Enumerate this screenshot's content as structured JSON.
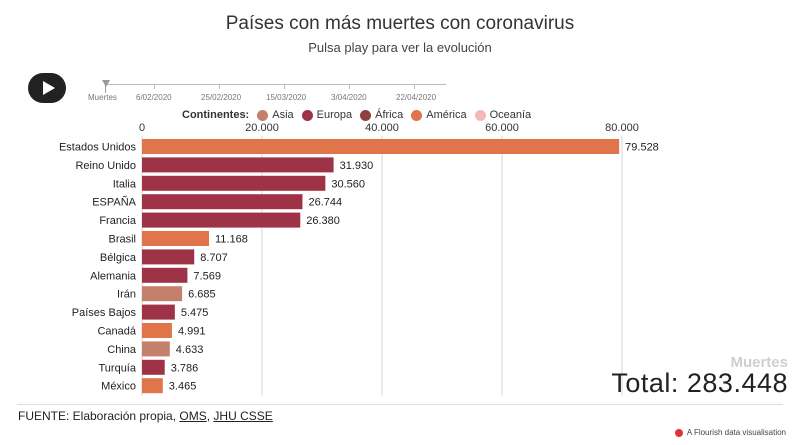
{
  "header": {
    "title": "Países con más muertes con coronavirus",
    "subtitle": "Pulsa play para ver la evolución"
  },
  "timeline": {
    "label": "Muertes",
    "dates": [
      "6/02/2020",
      "25/02/2020",
      "15/03/2020",
      "3/04/2020",
      "22/04/2020"
    ]
  },
  "legend": {
    "title": "Continentes:",
    "items": [
      {
        "name": "Asia",
        "color": "#c4806a"
      },
      {
        "name": "Europa",
        "color": "#9e3348"
      },
      {
        "name": "África",
        "color": "#8e4040"
      },
      {
        "name": "América",
        "color": "#e0744a"
      },
      {
        "name": "Oceanía",
        "color": "#f4b8b8"
      }
    ]
  },
  "chart_data": {
    "type": "bar",
    "orientation": "horizontal",
    "xlim": [
      0,
      80000
    ],
    "x_ticks": [
      "0",
      "20.000",
      "40.000",
      "60.000",
      "80.000"
    ],
    "x_tick_values": [
      0,
      20000,
      40000,
      60000,
      80000
    ],
    "grid": true,
    "categories": [
      "Estados Unidos",
      "Reino Unido",
      "Italia",
      "ESPAÑA",
      "Francia",
      "Brasil",
      "Bélgica",
      "Alemania",
      "Irán",
      "Países Bajos",
      "Canadá",
      "China",
      "Turquía",
      "México"
    ],
    "values": [
      79528,
      31930,
      30560,
      26744,
      26380,
      11168,
      8707,
      7569,
      6685,
      5475,
      4991,
      4633,
      3786,
      3465
    ],
    "value_labels": [
      "79.528",
      "31.930",
      "30.560",
      "26.744",
      "26.380",
      "11.168",
      "8.707",
      "7.569",
      "6.685",
      "5.475",
      "4.991",
      "4.633",
      "3.786",
      "3.465"
    ],
    "continents": [
      "América",
      "Europa",
      "Europa",
      "Europa",
      "Europa",
      "América",
      "Europa",
      "Europa",
      "Asia",
      "Europa",
      "América",
      "Asia",
      "Europa",
      "América"
    ]
  },
  "total": {
    "label": "Muertes",
    "value": "Total: 283.448"
  },
  "footer": {
    "prefix": "FUENTE: Elaboración propia, ",
    "link1": "OMS",
    "separator": ", ",
    "link2": "JHU CSSE",
    "credit": "A Flourish data visualisation"
  }
}
